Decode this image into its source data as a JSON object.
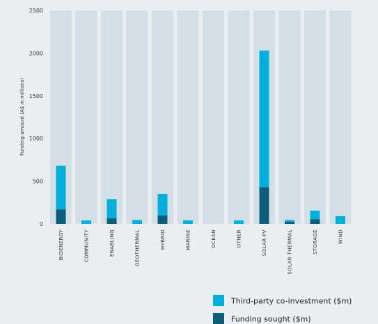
{
  "chart_data": {
    "type": "bar",
    "stacked": true,
    "ylabel": "Funding amount (A$ in millions)",
    "xlabel": "",
    "ylim": [
      0,
      2500
    ],
    "yticks": [
      0,
      500,
      1000,
      1500,
      2000,
      2500
    ],
    "categories": [
      "BIOENERGY",
      "COMMUNITY",
      "ENABLING",
      "GEOTHERMAL",
      "HYBRID",
      "MARINE",
      "OCEAN",
      "OTHER",
      "SOLAR PV",
      "SOLAR THERMAL",
      "STORAGE",
      "WIND"
    ],
    "series": [
      {
        "name": "Funding sought ($m)",
        "color": "#0a5e7a",
        "values": [
          170,
          0,
          65,
          0,
          100,
          0,
          0,
          0,
          430,
          25,
          55,
          0
        ]
      },
      {
        "name": "Third-party co-investment ($m)",
        "color": "#00b0dc",
        "values": [
          510,
          40,
          225,
          45,
          250,
          40,
          0,
          40,
          1600,
          20,
          100,
          90
        ]
      }
    ],
    "background_bar_color": "#d3dee5",
    "legend_position": "bottom-right"
  }
}
